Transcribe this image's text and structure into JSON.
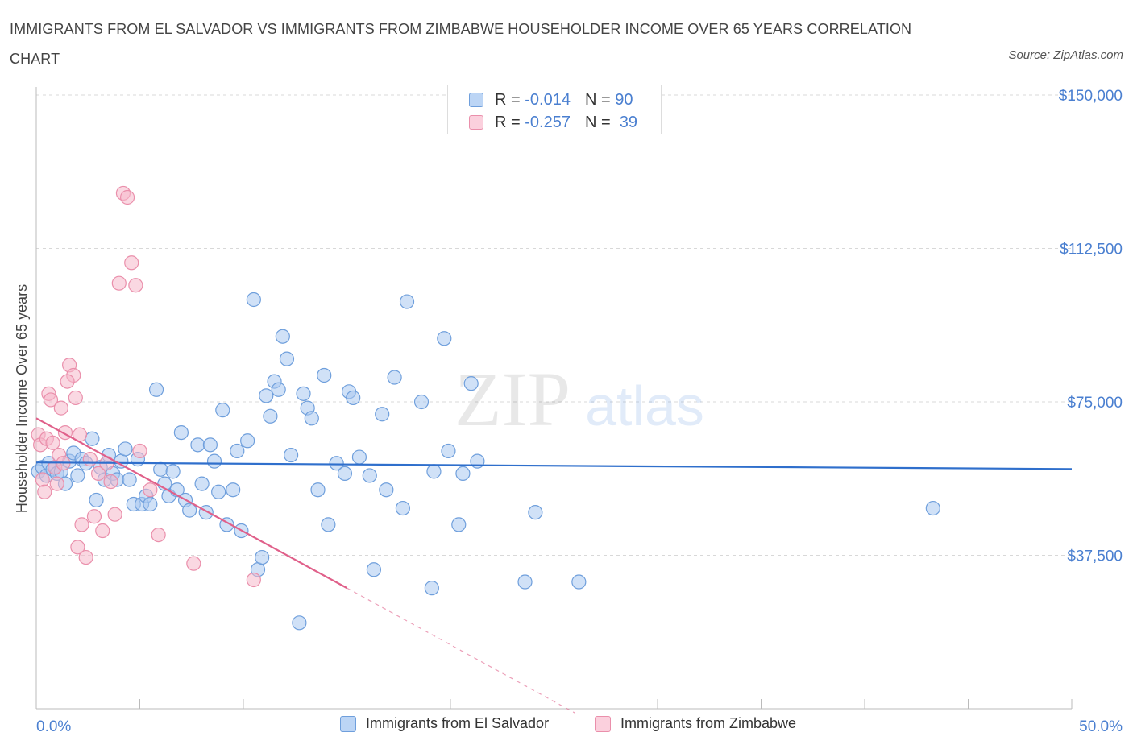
{
  "header": {
    "title": "IMMIGRANTS FROM EL SALVADOR VS IMMIGRANTS FROM ZIMBABWE HOUSEHOLDER INCOME OVER 65 YEARS CORRELATION CHART",
    "source": "Source: ZipAtlas.com"
  },
  "legend": {
    "r_label": "R =",
    "n_label": "N =",
    "series": [
      {
        "r": "-0.014",
        "n": "90"
      },
      {
        "r": "-0.257",
        "n": "39"
      }
    ]
  },
  "watermark": {
    "zip": "ZIP",
    "atlas": "atlas"
  },
  "colors": {
    "blue_fill": "#a9c8f0",
    "blue_stroke": "#6f9fdc",
    "blue_line": "#2f6fcc",
    "pink_fill": "#f6b8cb",
    "pink_stroke": "#ea8fab",
    "pink_line": "#e0608a",
    "tick_label": "#4a7fd0",
    "grid": "#d8d8d8"
  },
  "chart_data": {
    "type": "scatter",
    "title": "IMMIGRANTS FROM EL SALVADOR VS IMMIGRANTS FROM ZIMBABWE HOUSEHOLDER INCOME OVER 65 YEARS CORRELATION CHART",
    "xlabel": "",
    "ylabel": "Householder Income Over 65 years",
    "xlim": [
      0,
      50
    ],
    "ylim": [
      0,
      150000
    ],
    "x_tick_labels": [
      "0.0%",
      "50.0%"
    ],
    "y_ticks": [
      37500,
      75000,
      112500,
      150000
    ],
    "y_tick_labels": [
      "$37,500",
      "$75,000",
      "$112,500",
      "$150,000"
    ],
    "grid": true,
    "legend_position": "top-center",
    "series": [
      {
        "name": "Immigrants from El Salvador",
        "color": "#6f9fdc",
        "r": -0.014,
        "n": 90,
        "trend": {
          "x": [
            0,
            50
          ],
          "y": [
            60200,
            58600
          ]
        },
        "points": [
          [
            0.1,
            58000
          ],
          [
            0.3,
            59000
          ],
          [
            0.5,
            57000
          ],
          [
            0.6,
            60000
          ],
          [
            0.8,
            58500
          ],
          [
            1.0,
            57500
          ],
          [
            1.2,
            58000
          ],
          [
            1.4,
            55000
          ],
          [
            1.6,
            60500
          ],
          [
            1.8,
            62500
          ],
          [
            2.0,
            57000
          ],
          [
            2.2,
            61000
          ],
          [
            2.4,
            60000
          ],
          [
            2.7,
            66000
          ],
          [
            2.9,
            51000
          ],
          [
            3.1,
            59000
          ],
          [
            3.3,
            56000
          ],
          [
            3.5,
            62000
          ],
          [
            3.7,
            57500
          ],
          [
            3.9,
            56000
          ],
          [
            4.1,
            60500
          ],
          [
            4.3,
            63500
          ],
          [
            4.5,
            56000
          ],
          [
            4.7,
            50000
          ],
          [
            4.9,
            61000
          ],
          [
            5.1,
            50000
          ],
          [
            5.3,
            52000
          ],
          [
            5.5,
            50000
          ],
          [
            5.8,
            78000
          ],
          [
            6.0,
            58500
          ],
          [
            6.2,
            55000
          ],
          [
            6.4,
            52000
          ],
          [
            6.6,
            58000
          ],
          [
            6.8,
            53500
          ],
          [
            7.0,
            67500
          ],
          [
            7.2,
            51000
          ],
          [
            7.4,
            48500
          ],
          [
            7.8,
            64500
          ],
          [
            8.0,
            55000
          ],
          [
            8.2,
            48000
          ],
          [
            8.4,
            64500
          ],
          [
            8.6,
            60500
          ],
          [
            8.8,
            53000
          ],
          [
            9.0,
            73000
          ],
          [
            9.2,
            45000
          ],
          [
            9.5,
            53500
          ],
          [
            9.7,
            63000
          ],
          [
            9.9,
            43500
          ],
          [
            10.2,
            65500
          ],
          [
            10.5,
            100000
          ],
          [
            10.7,
            34000
          ],
          [
            10.9,
            37000
          ],
          [
            11.1,
            76500
          ],
          [
            11.3,
            71500
          ],
          [
            11.5,
            80000
          ],
          [
            11.7,
            78000
          ],
          [
            11.9,
            91000
          ],
          [
            12.1,
            85500
          ],
          [
            12.3,
            62000
          ],
          [
            12.7,
            21000
          ],
          [
            12.9,
            77000
          ],
          [
            13.1,
            73500
          ],
          [
            13.3,
            71000
          ],
          [
            13.6,
            53500
          ],
          [
            13.9,
            81500
          ],
          [
            14.1,
            45000
          ],
          [
            14.5,
            60000
          ],
          [
            14.9,
            57500
          ],
          [
            15.1,
            77500
          ],
          [
            15.3,
            76000
          ],
          [
            15.6,
            61500
          ],
          [
            16.1,
            57000
          ],
          [
            16.3,
            34000
          ],
          [
            16.7,
            72000
          ],
          [
            16.9,
            53500
          ],
          [
            17.3,
            81000
          ],
          [
            17.7,
            49000
          ],
          [
            17.9,
            99500
          ],
          [
            18.6,
            75000
          ],
          [
            19.1,
            29500
          ],
          [
            19.2,
            58000
          ],
          [
            19.7,
            90500
          ],
          [
            19.9,
            63000
          ],
          [
            20.4,
            45000
          ],
          [
            20.6,
            57500
          ],
          [
            21.0,
            79500
          ],
          [
            21.3,
            60500
          ],
          [
            23.6,
            31000
          ],
          [
            24.1,
            48000
          ],
          [
            26.2,
            31000
          ],
          [
            43.3,
            49000
          ]
        ]
      },
      {
        "name": "Immigrants from Zimbabwe",
        "color": "#ea8fab",
        "r": -0.257,
        "n": 39,
        "trend": {
          "x": [
            0,
            15.0
          ],
          "y": [
            71000,
            29500
          ]
        },
        "trend_extension": {
          "x": [
            15.0,
            26.0
          ],
          "y": [
            29500,
            -1000
          ]
        },
        "points": [
          [
            0.1,
            67000
          ],
          [
            0.2,
            64500
          ],
          [
            0.3,
            56000
          ],
          [
            0.4,
            53000
          ],
          [
            0.5,
            66000
          ],
          [
            0.6,
            77000
          ],
          [
            0.7,
            75500
          ],
          [
            0.8,
            65000
          ],
          [
            0.9,
            59000
          ],
          [
            1.0,
            55000
          ],
          [
            1.1,
            62000
          ],
          [
            1.2,
            73500
          ],
          [
            1.3,
            60000
          ],
          [
            1.4,
            67500
          ],
          [
            1.6,
            84000
          ],
          [
            1.8,
            81500
          ],
          [
            2.0,
            39500
          ],
          [
            2.2,
            45000
          ],
          [
            2.4,
            37000
          ],
          [
            2.6,
            61000
          ],
          [
            2.8,
            47000
          ],
          [
            3.0,
            57500
          ],
          [
            3.2,
            43500
          ],
          [
            3.4,
            60000
          ],
          [
            3.6,
            55500
          ],
          [
            3.8,
            47500
          ],
          [
            4.0,
            104000
          ],
          [
            4.2,
            126000
          ],
          [
            4.4,
            125000
          ],
          [
            4.6,
            109000
          ],
          [
            4.8,
            103500
          ],
          [
            5.0,
            63000
          ],
          [
            5.5,
            53500
          ],
          [
            5.9,
            42500
          ],
          [
            7.6,
            35500
          ],
          [
            10.5,
            31500
          ],
          [
            1.5,
            80000
          ],
          [
            2.1,
            67000
          ],
          [
            1.9,
            76000
          ]
        ]
      }
    ]
  },
  "bottom_legend": [
    {
      "label": "Immigrants from El Salvador"
    },
    {
      "label": "Immigrants from Zimbabwe"
    }
  ]
}
